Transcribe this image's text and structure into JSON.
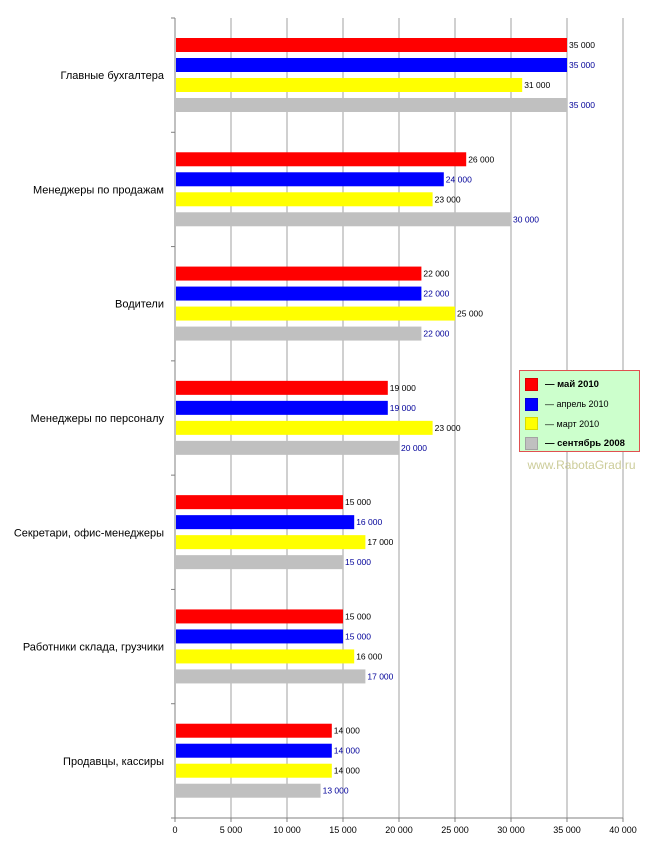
{
  "chart_data": {
    "type": "bar",
    "orientation": "horizontal",
    "categories": [
      "Главные бухгалтера",
      "Менеджеры по продажам",
      "Водители",
      "Менеджеры по персоналу",
      "Секретари, офис-менеджеры",
      "Работники склада, грузчики",
      "Продавцы, кассиры"
    ],
    "series": [
      {
        "name": "— май 2010",
        "color": "#ff0000",
        "label_color": "#000000",
        "values": [
          35000,
          26000,
          22000,
          19000,
          15000,
          15000,
          14000
        ]
      },
      {
        "name": "— апрель 2010",
        "color": "#0000ff",
        "label_color": "#000099",
        "values": [
          35000,
          24000,
          22000,
          19000,
          16000,
          15000,
          14000
        ]
      },
      {
        "name": "— март 2010",
        "color": "#ffff00",
        "label_color": "#000000",
        "values": [
          31000,
          23000,
          25000,
          23000,
          17000,
          16000,
          14000
        ]
      },
      {
        "name": "— сентябрь 2008",
        "color": "#c0c0c0",
        "label_color": "#000099",
        "values": [
          35000,
          30000,
          22000,
          20000,
          15000,
          17000,
          13000
        ]
      }
    ],
    "value_labels": [
      [
        "35 000",
        "26 000",
        "22 000",
        "19 000",
        "15 000",
        "15 000",
        "14 000"
      ],
      [
        "35 000",
        "24 000",
        "22 000",
        "19 000",
        "16 000",
        "15 000",
        "14 000"
      ],
      [
        "31 000",
        "23 000",
        "25 000",
        "23 000",
        "17 000",
        "16 000",
        "14 000"
      ],
      [
        "35 000",
        "30 000",
        "22 000",
        "20 000",
        "15 000",
        "17 000",
        "13 000"
      ]
    ],
    "xlim": [
      0,
      40000
    ],
    "xticks": [
      0,
      5000,
      10000,
      15000,
      20000,
      25000,
      30000,
      35000,
      40000
    ],
    "xtick_labels": [
      "0",
      "5 000",
      "10 000",
      "15 000",
      "20 000",
      "25 000",
      "30 000",
      "35 000",
      "40 000"
    ],
    "grid": true,
    "legend_position": "right-middle",
    "title": "",
    "xlabel": "",
    "ylabel": ""
  },
  "legend": {
    "items": [
      {
        "label": "— май 2010",
        "color": "#ff0000",
        "bold": true
      },
      {
        "label": "— апрель 2010",
        "color": "#0000ff",
        "bold": false
      },
      {
        "label": "— март 2010",
        "color": "#ffff00",
        "bold": false
      },
      {
        "label": "— сентябрь 2008",
        "color": "#c0c0c0",
        "bold": true
      }
    ]
  },
  "watermark": "www.RabotaGrad.ru"
}
